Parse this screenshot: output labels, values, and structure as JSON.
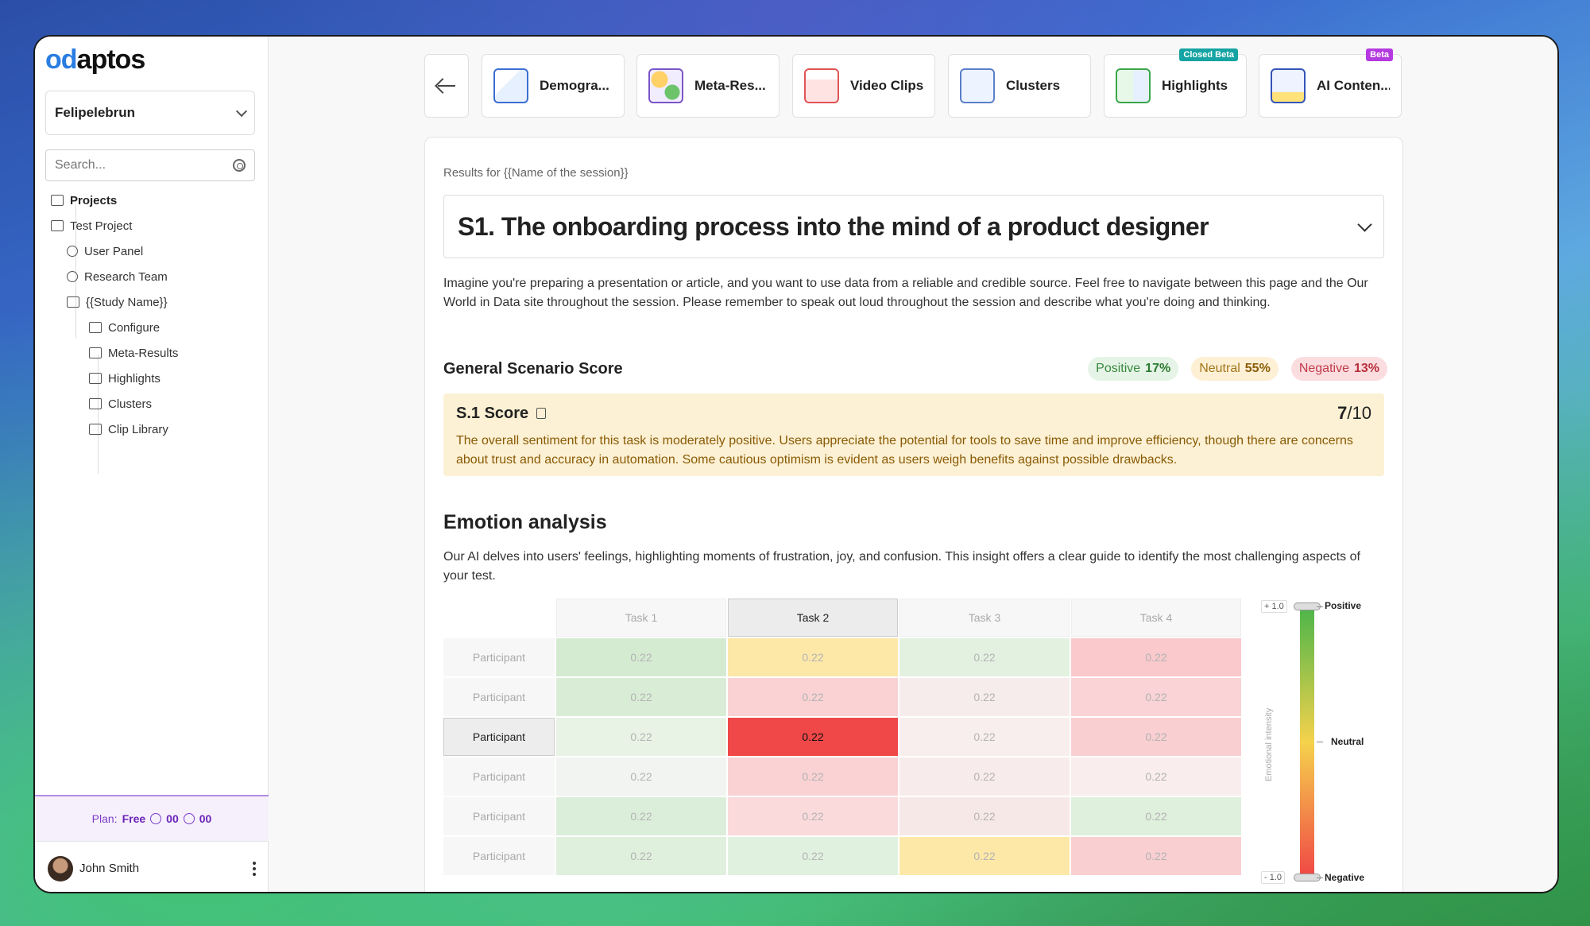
{
  "logo": {
    "part1": "od",
    "part2": "aptos"
  },
  "sidebar": {
    "workspace": "Felipelebrun",
    "search_placeholder": "Search...",
    "items": [
      {
        "label": "Projects"
      },
      {
        "label": "Test Project"
      },
      {
        "label": "User Panel"
      },
      {
        "label": "Research Team"
      },
      {
        "label": "{{Study Name}}"
      },
      {
        "label": "Configure"
      },
      {
        "label": "Meta-Results"
      },
      {
        "label": "Highlights"
      },
      {
        "label": "Clusters"
      },
      {
        "label": "Clip Library"
      }
    ],
    "plan": {
      "label": "Plan:",
      "tier": "Free",
      "count1": "00",
      "count2": "00"
    },
    "user": {
      "name": "John Smith"
    }
  },
  "tabs": [
    {
      "label": "Demogra...",
      "icon": "chart-icon"
    },
    {
      "label": "Meta-Res...",
      "icon": "meta-results-icon"
    },
    {
      "label": "Video Clips",
      "icon": "video-icon"
    },
    {
      "label": "Clusters",
      "icon": "clusters-icon"
    },
    {
      "label": "Highlights",
      "icon": "highlights-icon",
      "badge": "Closed Beta"
    },
    {
      "label": "AI Conten...",
      "icon": "ai-content-icon",
      "badge": "Beta"
    }
  ],
  "main": {
    "results_for": "Results for {{Name of the session}}",
    "scenario_title": "S1. The onboarding process into the mind of a product designer",
    "description": "Imagine you're preparing a presentation or article, and you want to use data from a reliable and credible source. Feel free to navigate between this page and the Our World in Data site throughout the session. Please remember to speak out loud throughout the session and describe what you're doing and thinking.",
    "general_score_title": "General Scenario Score",
    "pills": {
      "positive": {
        "label": "Positive",
        "value": "17%"
      },
      "neutral": {
        "label": "Neutral",
        "value": "55%"
      },
      "negative": {
        "label": "Negative",
        "value": "13%"
      }
    },
    "score_card": {
      "title": "S.1 Score",
      "score": "7",
      "max": "/10",
      "text": "The overall sentiment for this task is moderately positive. Users appreciate the potential for tools to save time and improve efficiency, though there are concerns about trust and accuracy in automation. Some cautious optimism is evident as users weigh benefits against possible drawbacks."
    },
    "emotion_title": "Emotion analysis",
    "emotion_desc": "Our AI delves into users' feelings, highlighting moments of frustration, joy, and confusion. This insight offers a clear guide to identify the most challenging aspects of your test."
  },
  "heatmap": {
    "tasks": [
      "Task 1",
      "Task 2",
      "Task 3",
      "Task 4"
    ],
    "active_task": 1,
    "active_row": 2,
    "rows": [
      {
        "label": "Participant",
        "values": [
          "0.22",
          "0.22",
          "0.22",
          "0.22"
        ],
        "colors": [
          "#d4ebd2",
          "#fde8a8",
          "#e3f1e1",
          "#f9c9cc"
        ]
      },
      {
        "label": "Participant",
        "values": [
          "0.22",
          "0.22",
          "0.22",
          "0.22"
        ],
        "colors": [
          "#d9edd6",
          "#fad2d4",
          "#f7ecec",
          "#f9d3d5"
        ]
      },
      {
        "label": "Participant",
        "values": [
          "0.22",
          "0.22",
          "0.22",
          "0.22"
        ],
        "colors": [
          "#e8f3e6",
          "#f04848",
          "#f8eeee",
          "#f9cfd2"
        ]
      },
      {
        "label": "Participant",
        "values": [
          "0.22",
          "0.22",
          "0.22",
          "0.22"
        ],
        "colors": [
          "#f2f4f1",
          "#fad2d4",
          "#f8ebeb",
          "#f9eded"
        ]
      },
      {
        "label": "Participant",
        "values": [
          "0.22",
          "0.22",
          "0.22",
          "0.22"
        ],
        "colors": [
          "#dbeeda",
          "#fbdadc",
          "#f7e8e8",
          "#dff0dd"
        ]
      },
      {
        "label": "Participant",
        "values": [
          "0.22",
          "0.22",
          "0.22",
          "0.22"
        ],
        "colors": [
          "#dff0dd",
          "#e1f1df",
          "#fde8a8",
          "#f9cfd2"
        ]
      }
    ],
    "legend": {
      "top_tick": "+ 1.0",
      "bottom_tick": "- 1.0",
      "positive": "Positive",
      "neutral": "Neutral",
      "negative": "Negative",
      "axis": "Emotional intensity"
    }
  }
}
